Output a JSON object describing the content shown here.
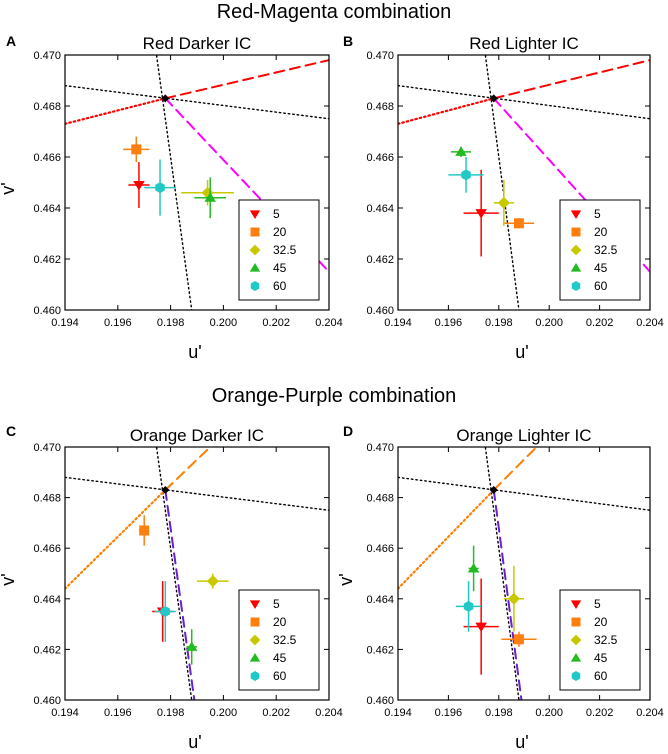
{
  "sections": [
    {
      "title": "Red-Magenta combination"
    },
    {
      "title": "Orange-Purple combination"
    }
  ],
  "colors": {
    "red": "#ff0000",
    "magenta": "#ff00ff",
    "orange": "#ff7f00",
    "purple": "#6a1fd0",
    "blue_dash": "#3a3aff",
    "s5": "#ff0000",
    "s20": "#ff7f0e",
    "s32_5": "#c8c800",
    "s45": "#22bb22",
    "s60": "#22c8c8"
  },
  "chart_data": [
    {
      "type": "scatter",
      "letter": "A",
      "title": "Red Darker IC",
      "xlabel": "u'",
      "ylabel": "v'",
      "xlim": [
        0.194,
        0.204
      ],
      "ylim": [
        0.46,
        0.47
      ],
      "xticks": [
        "0.194",
        "0.196",
        "0.198",
        "0.200",
        "0.202",
        "0.204"
      ],
      "yticks": [
        "0.460",
        "0.462",
        "0.464",
        "0.466",
        "0.468",
        "0.470"
      ],
      "white_point": [
        0.1978,
        0.4683
      ],
      "lines": [
        {
          "style": "dotted",
          "color": "#000000",
          "x1": 0.1974,
          "y1": 0.4705,
          "x2": 0.1988,
          "y2": 0.46
        },
        {
          "style": "dotted",
          "color": "#000000",
          "x1": 0.194,
          "y1": 0.4688,
          "x2": 0.204,
          "y2": 0.4675
        },
        {
          "style": "dotted",
          "color": "#ff0000",
          "x1": 0.194,
          "y1": 0.4673,
          "x2": 0.1978,
          "y2": 0.4683
        },
        {
          "style": "dashed",
          "color": "#ff0000",
          "x1": 0.1978,
          "y1": 0.4683,
          "x2": 0.204,
          "y2": 0.4698
        },
        {
          "style": "dashed",
          "color": "#ff00ff",
          "x1": 0.1978,
          "y1": 0.4683,
          "x2": 0.204,
          "y2": 0.4615
        }
      ],
      "series": [
        {
          "name": "5",
          "marker": "triangle-down",
          "color": "#ff0000",
          "x": 0.1968,
          "y": 0.4649,
          "xerr": 0.0004,
          "yerr": 0.0009
        },
        {
          "name": "20",
          "marker": "square",
          "color": "#ff7f0e",
          "x": 0.1967,
          "y": 0.4663,
          "xerr": 0.0005,
          "yerr": 0.0005
        },
        {
          "name": "32.5",
          "marker": "diamond",
          "color": "#c8c800",
          "x": 0.1994,
          "y": 0.4646,
          "xerr": 0.001,
          "yerr": 0.0005
        },
        {
          "name": "45",
          "marker": "triangle-up",
          "color": "#22bb22",
          "x": 0.1995,
          "y": 0.4644,
          "xerr": 0.0006,
          "yerr": 0.0008
        },
        {
          "name": "60",
          "marker": "hexagon",
          "color": "#22c8c8",
          "x": 0.1976,
          "y": 0.4648,
          "xerr": 0.0006,
          "yerr": 0.0011
        }
      ],
      "legend": "bottom-right"
    },
    {
      "type": "scatter",
      "letter": "B",
      "title": "Red Lighter IC",
      "xlabel": "u'",
      "ylabel": "",
      "xlim": [
        0.194,
        0.204
      ],
      "ylim": [
        0.46,
        0.47
      ],
      "xticks": [
        "0.194",
        "0.196",
        "0.198",
        "0.200",
        "0.202",
        "0.204"
      ],
      "yticks": [
        "0.460",
        "0.462",
        "0.464",
        "0.466",
        "0.468",
        "0.470"
      ],
      "white_point": [
        0.1978,
        0.4683
      ],
      "lines": [
        {
          "style": "dotted",
          "color": "#000000",
          "x1": 0.1974,
          "y1": 0.4705,
          "x2": 0.1988,
          "y2": 0.46
        },
        {
          "style": "dotted",
          "color": "#000000",
          "x1": 0.194,
          "y1": 0.4688,
          "x2": 0.204,
          "y2": 0.4675
        },
        {
          "style": "dotted",
          "color": "#ff0000",
          "x1": 0.194,
          "y1": 0.4673,
          "x2": 0.1978,
          "y2": 0.4683
        },
        {
          "style": "dashed",
          "color": "#ff0000",
          "x1": 0.1978,
          "y1": 0.4683,
          "x2": 0.204,
          "y2": 0.4698
        },
        {
          "style": "dashed",
          "color": "#ff00ff",
          "x1": 0.1978,
          "y1": 0.4683,
          "x2": 0.204,
          "y2": 0.4615
        }
      ],
      "series": [
        {
          "name": "5",
          "marker": "triangle-down",
          "color": "#ff0000",
          "x": 0.1973,
          "y": 0.4638,
          "xerr": 0.0007,
          "yerr": 0.0017
        },
        {
          "name": "20",
          "marker": "square",
          "color": "#ff7f0e",
          "x": 0.1988,
          "y": 0.4634,
          "xerr": 0.0006,
          "yerr": 0.0002
        },
        {
          "name": "32.5",
          "marker": "diamond",
          "color": "#c8c800",
          "x": 0.1982,
          "y": 0.4642,
          "xerr": 0.0004,
          "yerr": 0.0009
        },
        {
          "name": "45",
          "marker": "triangle-up",
          "color": "#22bb22",
          "x": 0.1965,
          "y": 0.4662,
          "xerr": 0.0004,
          "yerr": 0.0002
        },
        {
          "name": "60",
          "marker": "hexagon",
          "color": "#22c8c8",
          "x": 0.1967,
          "y": 0.4653,
          "xerr": 0.0007,
          "yerr": 0.0007
        }
      ],
      "legend": "bottom-right"
    },
    {
      "type": "scatter",
      "letter": "C",
      "title": "Orange Darker IC",
      "xlabel": "u'",
      "ylabel": "v'",
      "xlim": [
        0.194,
        0.204
      ],
      "ylim": [
        0.46,
        0.47
      ],
      "xticks": [
        "0.194",
        "0.196",
        "0.198",
        "0.200",
        "0.202",
        "0.204"
      ],
      "yticks": [
        "0.460",
        "0.462",
        "0.464",
        "0.466",
        "0.468",
        "0.470"
      ],
      "white_point": [
        0.1978,
        0.4683
      ],
      "lines": [
        {
          "style": "dotted",
          "color": "#000000",
          "x1": 0.1974,
          "y1": 0.4705,
          "x2": 0.1988,
          "y2": 0.46
        },
        {
          "style": "dotted",
          "color": "#000000",
          "x1": 0.194,
          "y1": 0.4688,
          "x2": 0.204,
          "y2": 0.4675
        },
        {
          "style": "dotted",
          "color": "#ff7f00",
          "x1": 0.194,
          "y1": 0.4644,
          "x2": 0.1978,
          "y2": 0.4683
        },
        {
          "style": "dashed",
          "color": "#ff7f00",
          "x1": 0.1978,
          "y1": 0.4683,
          "x2": 0.2,
          "y2": 0.4705
        },
        {
          "style": "dashed",
          "color": "#6a1fd0",
          "x1": 0.1978,
          "y1": 0.4683,
          "x2": 0.1989,
          "y2": 0.46
        }
      ],
      "series": [
        {
          "name": "5",
          "marker": "triangle-down",
          "color": "#ff0000",
          "x": 0.1977,
          "y": 0.4635,
          "xerr": 0.0004,
          "yerr": 0.0012
        },
        {
          "name": "20",
          "marker": "square",
          "color": "#ff7f0e",
          "x": 0.197,
          "y": 0.4667,
          "xerr": 0.0002,
          "yerr": 0.0006
        },
        {
          "name": "32.5",
          "marker": "diamond",
          "color": "#c8c800",
          "x": 0.1996,
          "y": 0.4647,
          "xerr": 0.0006,
          "yerr": 0.0003
        },
        {
          "name": "45",
          "marker": "triangle-up",
          "color": "#22bb22",
          "x": 0.1988,
          "y": 0.4621,
          "xerr": 0.0002,
          "yerr": 0.0007
        },
        {
          "name": "60",
          "marker": "hexagon",
          "color": "#22c8c8",
          "x": 0.1978,
          "y": 0.4635,
          "xerr": 0.0004,
          "yerr": 0.0012
        }
      ],
      "legend": "bottom-right"
    },
    {
      "type": "scatter",
      "letter": "D",
      "title": "Orange Lighter IC",
      "xlabel": "u'",
      "ylabel": "v'",
      "xlim": [
        0.194,
        0.204
      ],
      "ylim": [
        0.46,
        0.47
      ],
      "xticks": [
        "0.194",
        "0.196",
        "0.198",
        "0.200",
        "0.202",
        "0.204"
      ],
      "yticks": [
        "0.460",
        "0.462",
        "0.464",
        "0.466",
        "0.468",
        "0.470"
      ],
      "white_point": [
        0.1978,
        0.4683
      ],
      "lines": [
        {
          "style": "dotted",
          "color": "#000000",
          "x1": 0.1974,
          "y1": 0.4705,
          "x2": 0.1988,
          "y2": 0.46
        },
        {
          "style": "dotted",
          "color": "#000000",
          "x1": 0.194,
          "y1": 0.4688,
          "x2": 0.204,
          "y2": 0.4675
        },
        {
          "style": "dotted",
          "color": "#ff7f00",
          "x1": 0.194,
          "y1": 0.4644,
          "x2": 0.1978,
          "y2": 0.4683
        },
        {
          "style": "dashed",
          "color": "#ff7f00",
          "x1": 0.1978,
          "y1": 0.4683,
          "x2": 0.2,
          "y2": 0.4705
        },
        {
          "style": "dashed",
          "color": "#6a1fd0",
          "x1": 0.1978,
          "y1": 0.4683,
          "x2": 0.1989,
          "y2": 0.46
        }
      ],
      "series": [
        {
          "name": "5",
          "marker": "triangle-down",
          "color": "#ff0000",
          "x": 0.1973,
          "y": 0.4629,
          "xerr": 0.0007,
          "yerr": 0.0019
        },
        {
          "name": "20",
          "marker": "square",
          "color": "#ff7f0e",
          "x": 0.1988,
          "y": 0.4624,
          "xerr": 0.0007,
          "yerr": 0.0003
        },
        {
          "name": "32.5",
          "marker": "diamond",
          "color": "#c8c800",
          "x": 0.1986,
          "y": 0.464,
          "xerr": 0.0004,
          "yerr": 0.0013
        },
        {
          "name": "45",
          "marker": "triangle-up",
          "color": "#22bb22",
          "x": 0.197,
          "y": 0.4652,
          "xerr": 0.0002,
          "yerr": 0.0009
        },
        {
          "name": "60",
          "marker": "hexagon",
          "color": "#22c8c8",
          "x": 0.1968,
          "y": 0.4637,
          "xerr": 0.0005,
          "yerr": 0.001
        }
      ],
      "legend": "bottom-right"
    }
  ]
}
